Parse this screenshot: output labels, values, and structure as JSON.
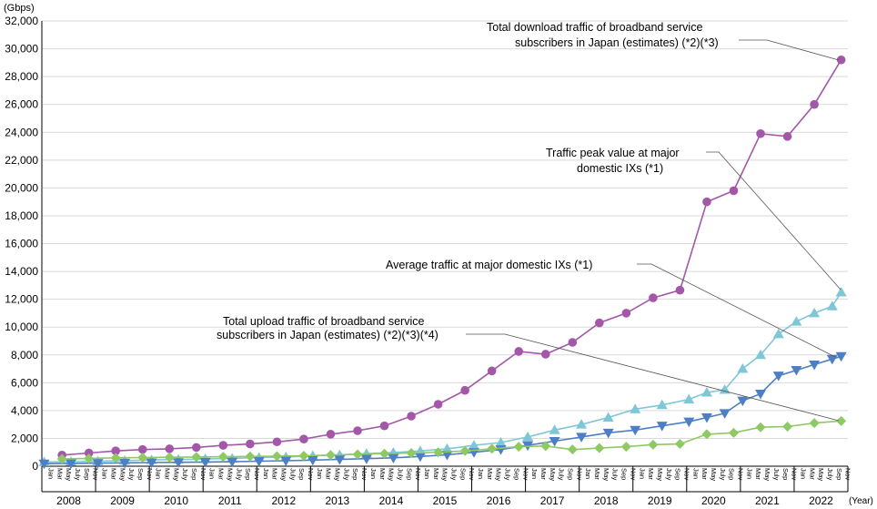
{
  "chart_data": {
    "type": "line",
    "unit_label": "(Gbps)",
    "year_unit_label": "(Year)",
    "ylim": [
      0,
      32000
    ],
    "y_ticks": [
      "0",
      "2,000",
      "4,000",
      "6,000",
      "8,000",
      "10,000",
      "12,000",
      "14,000",
      "16,000",
      "18,000",
      "20,000",
      "22,000",
      "24,000",
      "26,000",
      "28,000",
      "30,000",
      "32,000"
    ],
    "grid": true,
    "years": [
      "2008",
      "2009",
      "2010",
      "2011",
      "2012",
      "2013",
      "2014",
      "2015",
      "2016",
      "2017",
      "2018",
      "2019",
      "2020",
      "2021",
      "2022"
    ],
    "month_labels": [
      "Jan",
      "Mar",
      "May",
      "July",
      "Sep",
      "Nov"
    ],
    "series": [
      {
        "name": "Total download traffic of broadband service subscribers in Japan (estimates) (*2)(*3)",
        "label_lines": [
          "Total download traffic of broadband service",
          "subscribers in Japan (estimates) (*2)(*3)"
        ],
        "color": "#a357a8",
        "marker": "circle",
        "x": [
          "2008-05",
          "2008-11",
          "2009-05",
          "2009-11",
          "2010-05",
          "2010-11",
          "2011-05",
          "2011-11",
          "2012-05",
          "2012-11",
          "2013-05",
          "2013-11",
          "2014-05",
          "2014-11",
          "2015-05",
          "2015-11",
          "2016-05",
          "2016-11",
          "2017-05",
          "2017-11",
          "2018-05",
          "2018-11",
          "2019-05",
          "2019-11",
          "2020-05",
          "2020-11",
          "2021-05",
          "2021-11",
          "2022-05",
          "2022-11"
        ],
        "values": [
          800,
          950,
          1100,
          1200,
          1250,
          1350,
          1500,
          1600,
          1750,
          1950,
          2300,
          2550,
          2900,
          3600,
          4450,
          5450,
          6850,
          8250,
          8050,
          8900,
          10300,
          11000,
          12100,
          12650,
          19000,
          19800,
          23900,
          23700,
          26000,
          29200
        ]
      },
      {
        "name": "Traffic peak value at major domestic IXs (*1)",
        "label_lines": [
          "Traffic peak value at major",
          "domestic IXs (*1)"
        ],
        "color": "#7fc7d6",
        "marker": "triangle-up",
        "x": [
          "2008-01",
          "2008-07",
          "2009-01",
          "2009-07",
          "2010-01",
          "2010-07",
          "2011-01",
          "2011-07",
          "2012-01",
          "2012-07",
          "2013-01",
          "2013-07",
          "2014-01",
          "2014-07",
          "2015-01",
          "2015-07",
          "2016-01",
          "2016-07",
          "2017-01",
          "2017-07",
          "2018-01",
          "2018-07",
          "2019-01",
          "2019-07",
          "2020-01",
          "2020-05",
          "2020-09",
          "2021-01",
          "2021-05",
          "2021-09",
          "2022-01",
          "2022-05",
          "2022-09",
          "2022-11"
        ],
        "values": [
          300,
          330,
          360,
          400,
          450,
          480,
          520,
          560,
          620,
          660,
          750,
          810,
          900,
          980,
          1100,
          1250,
          1500,
          1700,
          2100,
          2600,
          3000,
          3500,
          4100,
          4400,
          4800,
          5300,
          5500,
          7000,
          8000,
          9500,
          10400,
          11000,
          11500,
          12500
        ]
      },
      {
        "name": "Average traffic at major domestic IXs (*1)",
        "label_lines": [
          "Average traffic at major domestic IXs (*1)"
        ],
        "color": "#4e7fc4",
        "marker": "triangle-down",
        "x": [
          "2008-01",
          "2008-07",
          "2009-01",
          "2009-07",
          "2010-01",
          "2010-07",
          "2011-01",
          "2011-07",
          "2012-01",
          "2012-07",
          "2013-01",
          "2013-07",
          "2014-01",
          "2014-07",
          "2015-01",
          "2015-07",
          "2016-01",
          "2016-07",
          "2017-01",
          "2017-07",
          "2018-01",
          "2018-07",
          "2019-01",
          "2019-07",
          "2020-01",
          "2020-05",
          "2020-09",
          "2021-01",
          "2021-05",
          "2021-09",
          "2022-01",
          "2022-05",
          "2022-09",
          "2022-11"
        ],
        "values": [
          180,
          200,
          220,
          240,
          260,
          280,
          300,
          320,
          360,
          390,
          440,
          490,
          540,
          600,
          700,
          820,
          1000,
          1200,
          1500,
          1800,
          2100,
          2400,
          2600,
          2900,
          3200,
          3500,
          3800,
          4700,
          5200,
          6500,
          6900,
          7300,
          7700,
          7900
        ]
      },
      {
        "name": "Total upload traffic of broadband service subscribers in Japan (estimates) (*2)(*3)(*4)",
        "label_lines": [
          "Total upload traffic of broadband service",
          "subscribers in Japan (estimates) (*2)(*3)(*4)"
        ],
        "color": "#8ec964",
        "marker": "diamond",
        "x": [
          "2008-05",
          "2008-11",
          "2009-05",
          "2009-11",
          "2010-05",
          "2010-11",
          "2011-05",
          "2011-11",
          "2012-05",
          "2012-11",
          "2013-05",
          "2013-11",
          "2014-05",
          "2014-11",
          "2015-05",
          "2015-11",
          "2016-05",
          "2016-11",
          "2017-05",
          "2017-11",
          "2018-05",
          "2018-11",
          "2019-05",
          "2019-11",
          "2020-05",
          "2020-11",
          "2021-05",
          "2021-11",
          "2022-05",
          "2022-11"
        ],
        "values": [
          520,
          560,
          600,
          620,
          640,
          660,
          680,
          700,
          720,
          750,
          800,
          850,
          900,
          950,
          1000,
          1100,
          1250,
          1400,
          1450,
          1200,
          1300,
          1400,
          1550,
          1600,
          2300,
          2400,
          2800,
          2850,
          3100,
          3250
        ]
      }
    ]
  }
}
